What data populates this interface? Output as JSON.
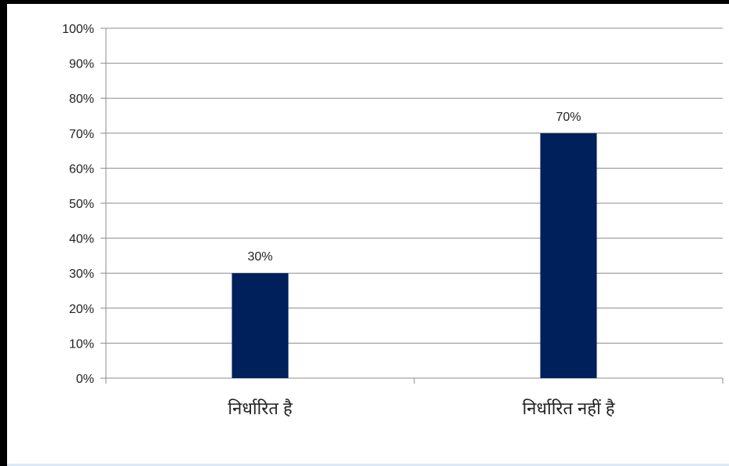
{
  "chart_data": {
    "type": "bar",
    "categories": [
      "निर्धारित है",
      "निर्धारित नहीं है"
    ],
    "values": [
      30,
      70
    ],
    "data_labels": [
      "30%",
      "70%"
    ],
    "ylim": [
      0,
      100
    ],
    "y_ticks": [
      0,
      10,
      20,
      30,
      40,
      50,
      60,
      70,
      80,
      90,
      100
    ],
    "y_tick_labels": [
      "0%",
      "10%",
      "20%",
      "30%",
      "40%",
      "50%",
      "60%",
      "70%",
      "80%",
      "90%",
      "100%"
    ],
    "grid": true,
    "legend": "none",
    "title": "",
    "xlabel": "",
    "ylabel": ""
  },
  "colors": {
    "bar": "#00205b",
    "grid": "#8c8c8c",
    "frame": "#000000"
  }
}
